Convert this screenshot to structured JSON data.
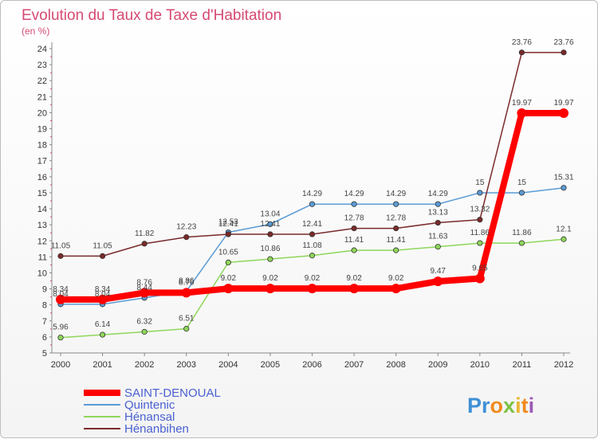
{
  "chart_data": {
    "type": "line",
    "title": "Evolution du Taux de Taxe d'Habitation",
    "subtitle": "(en %)",
    "x": [
      "2000",
      "2001",
      "2002",
      "2003",
      "2004",
      "2005",
      "2006",
      "2007",
      "2008",
      "2009",
      "2010",
      "2011",
      "2012"
    ],
    "ylim": [
      5,
      24
    ],
    "yticks": [
      5,
      6,
      7,
      8,
      9,
      10,
      11,
      12,
      13,
      14,
      15,
      16,
      17,
      18,
      19,
      20,
      21,
      22,
      23,
      24
    ],
    "grid": false,
    "legend_position": "bottom-left",
    "series": [
      {
        "name": "SAINT-DENOUAL",
        "color": "#ff0000",
        "width": 8,
        "values": [
          8.34,
          8.34,
          8.76,
          8.76,
          9.02,
          9.02,
          9.02,
          9.02,
          9.02,
          9.47,
          9.65,
          19.97,
          19.97
        ]
      },
      {
        "name": "Quintenic",
        "color": "#5b9bd5",
        "width": 1.5,
        "values": [
          8.04,
          8.04,
          8.44,
          8.86,
          12.53,
          13.04,
          14.29,
          14.29,
          14.29,
          14.29,
          15,
          15,
          15.31
        ]
      },
      {
        "name": "Hénansal",
        "color": "#8fd65a",
        "width": 1.5,
        "values": [
          5.96,
          6.14,
          6.32,
          6.51,
          10.65,
          10.86,
          11.08,
          11.41,
          11.41,
          11.63,
          11.86,
          11.86,
          12.1
        ]
      },
      {
        "name": "Hénanbihen",
        "color": "#7a2a2a",
        "width": 1.5,
        "values": [
          11.05,
          11.05,
          11.82,
          12.23,
          12.41,
          12.41,
          12.41,
          12.78,
          12.78,
          13.13,
          13.32,
          23.76,
          23.76
        ]
      }
    ]
  },
  "logo": {
    "text": "Proxiti",
    "colors": [
      "#3f8fd6",
      "#3f8fd6",
      "#f08a1e",
      "#7cc243",
      "#e8b530",
      "#f08a1e",
      "#9b59b6"
    ]
  }
}
